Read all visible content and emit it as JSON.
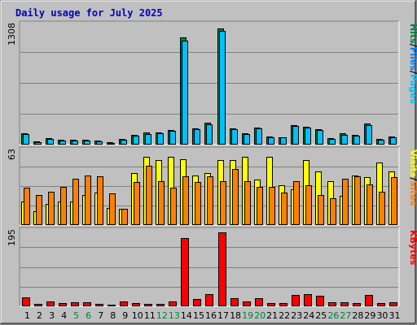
{
  "chart_data": {
    "type": "bar",
    "title": "Daily usage for July 2025",
    "x": [
      "1",
      "2",
      "3",
      "4",
      "5",
      "6",
      "7",
      "8",
      "9",
      "10",
      "11",
      "12",
      "13",
      "14",
      "15",
      "16",
      "17",
      "18",
      "19",
      "20",
      "21",
      "22",
      "23",
      "24",
      "25",
      "26",
      "27",
      "28",
      "29",
      "30",
      "31"
    ],
    "weekend_days": [
      "5",
      "6",
      "12",
      "13",
      "19",
      "20",
      "26",
      "27"
    ],
    "grid": true,
    "colors": {
      "background": "#c0c0c0",
      "title": "#0000c0",
      "hits": "#008040",
      "files": "#0080ff",
      "pages": "#00c0ff",
      "visits": "#ffff00",
      "sites": "#ff8000",
      "kbytes": "#ff0000",
      "weekend_label": "#008040"
    },
    "panels": [
      {
        "id": "hits-files-pages",
        "ymax_label": "1308",
        "ylim": [
          0,
          1308
        ],
        "legend": [
          "Pages",
          "Files",
          "Hits"
        ],
        "legend_separator": "/",
        "series": [
          {
            "name": "Hits",
            "values": [
              122,
              36,
              75,
              55,
              53,
              56,
              46,
              29,
              66,
              111,
              131,
              131,
              160,
              1180,
              183,
              241,
              1284,
              183,
              126,
              187,
              89,
              85,
              213,
              199,
              171,
              73,
              121,
              108,
              231,
              67,
              94
            ]
          },
          {
            "name": "Files",
            "values": [
              112,
              28,
              64,
              45,
              44,
              48,
              38,
              21,
              56,
              100,
              120,
              122,
              149,
              1143,
              172,
              228,
              1253,
              172,
              112,
              176,
              78,
              77,
              202,
              189,
              160,
              63,
              111,
              98,
              219,
              56,
              84
            ]
          },
          {
            "name": "Pages",
            "values": [
              112,
              28,
              64,
              45,
              44,
              48,
              38,
              21,
              56,
              100,
              120,
              122,
              149,
              1143,
              172,
              228,
              1253,
              172,
              112,
              176,
              78,
              77,
              202,
              189,
              160,
              63,
              111,
              98,
              219,
              56,
              84
            ]
          }
        ]
      },
      {
        "id": "visits-sites",
        "ymax_label": "63",
        "ylim": [
          0,
          63
        ],
        "legend": [
          "Sites",
          "Visits"
        ],
        "legend_separator": "/",
        "series": [
          {
            "name": "Visits",
            "values": [
              20,
              12,
              18,
              20,
              20,
              26,
              28,
              15,
              14,
              45,
              59,
              56,
              59,
              57,
              43,
              45,
              56,
              56,
              59,
              39,
              59,
              34,
              31,
              56,
              46,
              38,
              25,
              43,
              41,
              54,
              46
            ]
          },
          {
            "name": "Sites",
            "values": [
              32,
              26,
              29,
              33,
              40,
              43,
              42,
              27,
              14,
              37,
              51,
              38,
              32,
              42,
              37,
              42,
              38,
              48,
              38,
              33,
              33,
              28,
              38,
              34,
              26,
              23,
              40,
              42,
              35,
              29,
              41
            ]
          }
        ]
      },
      {
        "id": "kbytes",
        "ymax_label": "195",
        "ylim": [
          0,
          195
        ],
        "legend": [
          "KBytes"
        ],
        "legend_separator": "",
        "series": [
          {
            "name": "KBytes",
            "values": [
              23,
              7,
              13,
              9,
              10,
              11,
              7,
              5,
              13,
              8,
              7,
              6,
              13,
              180,
              20,
              32,
              195,
              22,
              13,
              21,
              9,
              9,
              31,
              33,
              27,
              11,
              10,
              8,
              29,
              9,
              10
            ]
          }
        ]
      }
    ]
  }
}
